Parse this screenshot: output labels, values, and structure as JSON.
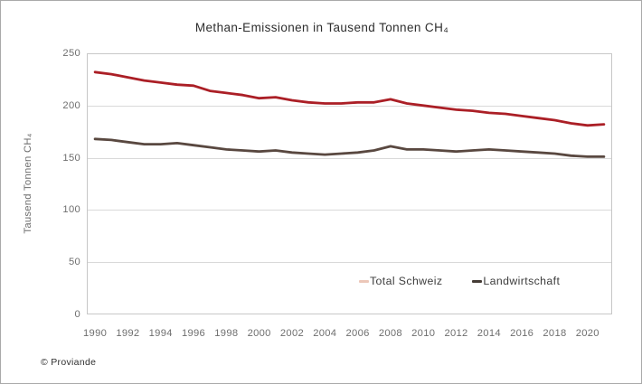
{
  "title": "Methan-Emissionen in Tausend Tonnen CH₄",
  "footer": {
    "copyright": "© Proviande"
  },
  "colors": {
    "gridline": "#d9d9d9",
    "plot_border": "#c7c7c7",
    "axis_text": "#6e6e6e",
    "title_text": "#2e2e2e",
    "legend_text": "#3c3c3c",
    "total_line": "#ab1f26",
    "landwirtschaft_line": "#594840",
    "total_legend_marker": "#ecc7b9",
    "landwirtschaft_legend_marker": "#453c36"
  },
  "chart_data": {
    "type": "line",
    "title": "Methan-Emissionen in Tausend Tonnen CH₄",
    "xlabel": "",
    "ylabel": "Tausend Tonnen CH₄",
    "ylim": [
      0,
      250
    ],
    "y_ticks": [
      0,
      50,
      100,
      150,
      200,
      250
    ],
    "x_tick_step": 2,
    "grid": "horizontal",
    "legend_position": "inside-bottom-right",
    "x": [
      1990,
      1991,
      1992,
      1993,
      1994,
      1995,
      1996,
      1997,
      1998,
      1999,
      2000,
      2001,
      2002,
      2003,
      2004,
      2005,
      2006,
      2007,
      2008,
      2009,
      2010,
      2011,
      2012,
      2013,
      2014,
      2015,
      2016,
      2017,
      2018,
      2019,
      2020,
      2021
    ],
    "series": [
      {
        "name": "Total Schweiz",
        "line_color": "#ab1f26",
        "legend_marker_color": "#ecc7b9",
        "values": [
          232,
          230,
          227,
          224,
          222,
          220,
          219,
          214,
          212,
          210,
          207,
          208,
          205,
          203,
          202,
          202,
          203,
          203,
          206,
          202,
          200,
          198,
          196,
          195,
          193,
          192,
          190,
          188,
          186,
          183,
          181,
          182
        ]
      },
      {
        "name": "Landwirtschaft",
        "line_color": "#594840",
        "legend_marker_color": "#453c36",
        "values": [
          168,
          167,
          165,
          163,
          163,
          164,
          162,
          160,
          158,
          157,
          156,
          157,
          155,
          154,
          153,
          154,
          155,
          157,
          161,
          158,
          158,
          157,
          156,
          157,
          158,
          157,
          156,
          155,
          154,
          152,
          151,
          151
        ]
      }
    ]
  }
}
